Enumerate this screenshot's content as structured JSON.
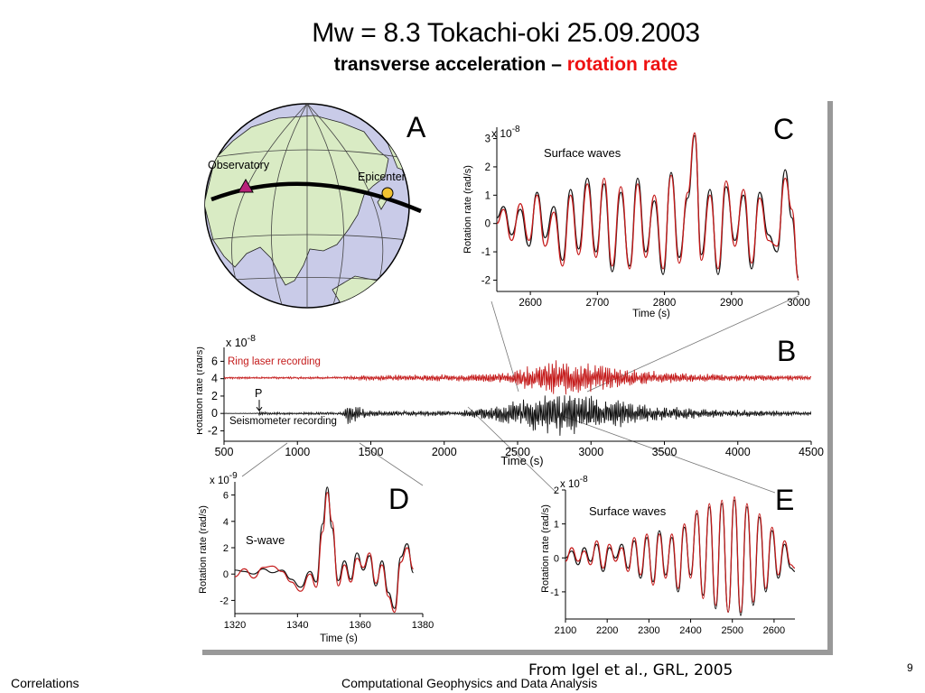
{
  "slide": {
    "title": "Mw = 8.3  Tokachi-oki 25.09.2003",
    "subtitle_part1": "transverse acceleration",
    "subtitle_dash": " – ",
    "subtitle_part2": "rotation rate",
    "citation": "From Igel et al., GRL, 2005",
    "footer_left": "Correlations",
    "footer_center": "Computational Geophysics and Data Analysis",
    "page_number": "9"
  },
  "colors": {
    "black_trace": "#111111",
    "red_trace": "#c41a1a",
    "globe_land": "#d9ebc4",
    "globe_ocean": "#c9cbe8",
    "observatory_marker": "#b8237a",
    "epicenter_marker": "#f2c230"
  },
  "panel_a": {
    "letter": "A",
    "observatory_label": "Observatory",
    "epicenter_label": "Epicenter",
    "observatory_icon": "triangle-marker",
    "epicenter_icon": "circle-marker"
  },
  "chart_data": [
    {
      "id": "B",
      "type": "line",
      "letter": "B",
      "ylabel": "Rotation rate (rad/s)",
      "yexp": "x 10",
      "yexp_power": "-8",
      "xlabel": "Time (s)",
      "xlim": [
        500,
        4500
      ],
      "ylim": [
        -3.2,
        7.6
      ],
      "xticks": [
        500,
        1000,
        1500,
        2000,
        2500,
        3000,
        3500,
        4000,
        4500
      ],
      "xtick_labels": [
        "500",
        "1000",
        "1500",
        "2000",
        "2500",
        "3000",
        "3500",
        "4000",
        "4500"
      ],
      "yticks": [
        -2,
        0,
        2,
        4,
        6
      ],
      "ytick_labels": [
        "-2",
        "0",
        "2",
        "4",
        "6"
      ],
      "annotations": [
        "Ring laser recording",
        "Seismometer recording",
        "P"
      ],
      "p_arrival_time": 740,
      "series": [
        {
          "name": "Ring laser recording",
          "color": "red",
          "offset": 4.1,
          "envelope": [
            [
              500,
              0.12
            ],
            [
              1300,
              0.15
            ],
            [
              1400,
              0.3
            ],
            [
              2200,
              0.45
            ],
            [
              2450,
              0.8
            ],
            [
              2600,
              1.5
            ],
            [
              2750,
              2.2
            ],
            [
              2900,
              2.0
            ],
            [
              3200,
              1.1
            ],
            [
              3700,
              0.5
            ],
            [
              4500,
              0.25
            ]
          ]
        },
        {
          "name": "Seismometer recording",
          "color": "black",
          "offset": 0.0,
          "envelope": [
            [
              500,
              0.02
            ],
            [
              730,
              0.04
            ],
            [
              745,
              0.5
            ],
            [
              760,
              0.15
            ],
            [
              1300,
              0.15
            ],
            [
              1350,
              1.4
            ],
            [
              1420,
              0.8
            ],
            [
              1500,
              0.35
            ],
            [
              2100,
              0.3
            ],
            [
              2400,
              1.2
            ],
            [
              2600,
              2.2
            ],
            [
              2800,
              2.9
            ],
            [
              3000,
              2.3
            ],
            [
              3400,
              1.0
            ],
            [
              3800,
              0.5
            ],
            [
              4500,
              0.25
            ]
          ]
        }
      ]
    },
    {
      "id": "C",
      "type": "line",
      "letter": "C",
      "annotation": "Surface waves",
      "ylabel": "Rotation rate (rad/s)",
      "yexp": "x 10",
      "yexp_power": "-8",
      "xlabel": "Time (s)",
      "xlim": [
        2550,
        3000
      ],
      "ylim": [
        -2.4,
        3.4
      ],
      "xticks": [
        2600,
        2700,
        2800,
        2900,
        3000
      ],
      "xtick_labels": [
        "2600",
        "2700",
        "2800",
        "2900",
        "3000"
      ],
      "yticks": [
        -2,
        -1,
        0,
        1,
        2,
        3
      ],
      "ytick_labels": [
        "-2",
        "-1",
        "0",
        "1",
        "2",
        "3"
      ],
      "series": [
        {
          "color": "black",
          "x": [
            2550,
            2560,
            2572,
            2585,
            2598,
            2610,
            2622,
            2635,
            2648,
            2660,
            2672,
            2685,
            2698,
            2710,
            2722,
            2735,
            2748,
            2760,
            2772,
            2785,
            2798,
            2810,
            2822,
            2835,
            2845,
            2855,
            2868,
            2880,
            2892,
            2905,
            2918,
            2930,
            2942,
            2955,
            2968,
            2980,
            2990,
            3000
          ],
          "y": [
            0.2,
            0.6,
            -0.4,
            0.5,
            -0.8,
            1.1,
            -0.5,
            0.6,
            -1.3,
            1.2,
            -0.9,
            1.6,
            -1.0,
            1.4,
            -1.7,
            1.1,
            -1.5,
            1.6,
            -1.0,
            0.8,
            -1.8,
            1.8,
            -1.2,
            0.9,
            3.1,
            -1.1,
            1.2,
            -1.8,
            1.3,
            -0.6,
            1.0,
            -1.6,
            1.1,
            -0.4,
            -1.0,
            1.9,
            0.2,
            -1.9
          ]
        },
        {
          "color": "red",
          "x": [
            2550,
            2560,
            2572,
            2585,
            2598,
            2610,
            2622,
            2635,
            2648,
            2660,
            2672,
            2685,
            2698,
            2710,
            2722,
            2735,
            2748,
            2760,
            2772,
            2785,
            2798,
            2810,
            2822,
            2835,
            2845,
            2855,
            2868,
            2880,
            2892,
            2905,
            2918,
            2930,
            2942,
            2955,
            2968,
            2980,
            2990,
            3000
          ],
          "y": [
            0.0,
            0.5,
            -0.6,
            0.7,
            -0.6,
            1.0,
            -0.8,
            0.4,
            -1.5,
            1.0,
            -1.1,
            1.4,
            -1.2,
            1.6,
            -1.5,
            1.3,
            -1.6,
            1.4,
            -1.2,
            1.0,
            -1.6,
            1.7,
            -1.4,
            1.1,
            3.2,
            -1.3,
            1.0,
            -1.6,
            1.5,
            -0.8,
            1.2,
            -1.4,
            0.9,
            -0.6,
            -0.8,
            1.6,
            0.5,
            -2.0
          ]
        }
      ]
    },
    {
      "id": "D",
      "type": "line",
      "letter": "D",
      "annotation": "S-wave",
      "ylabel": "Rotation rate (rad/s)",
      "yexp": "x 10",
      "yexp_power": "-9",
      "xlabel": "Time (s)",
      "xlim": [
        1320,
        1380
      ],
      "ylim": [
        -3,
        7
      ],
      "xticks": [
        1320,
        1340,
        1360,
        1380
      ],
      "xtick_labels": [
        "1320",
        "1340",
        "1360",
        "1380"
      ],
      "yticks": [
        -2,
        0,
        2,
        4,
        6
      ],
      "ytick_labels": [
        "-2",
        "0",
        "2",
        "4",
        "6"
      ],
      "series": [
        {
          "color": "black",
          "x": [
            1320,
            1323,
            1326,
            1329,
            1332,
            1335,
            1338,
            1341,
            1344,
            1346,
            1348,
            1349.5,
            1351,
            1353,
            1355,
            1357,
            1359,
            1361,
            1363,
            1365,
            1367,
            1369,
            1371,
            1373,
            1375,
            1377
          ],
          "y": [
            0.3,
            0.2,
            0.0,
            0.4,
            0.1,
            0.3,
            -0.4,
            -1.0,
            0.2,
            -0.6,
            3.8,
            6.6,
            3.5,
            -0.5,
            1.0,
            -0.4,
            1.6,
            0.3,
            1.4,
            -0.9,
            1.0,
            -1.4,
            -2.6,
            1.3,
            2.3,
            0.1
          ]
        },
        {
          "color": "red",
          "x": [
            1320,
            1323,
            1326,
            1329,
            1332,
            1335,
            1338,
            1341,
            1344,
            1346,
            1348,
            1349.5,
            1351,
            1353,
            1355,
            1357,
            1359,
            1361,
            1363,
            1365,
            1367,
            1369,
            1371,
            1373,
            1375,
            1377
          ],
          "y": [
            -0.2,
            0.4,
            -0.3,
            0.5,
            0.6,
            0.2,
            -0.6,
            -1.3,
            0.0,
            -1.0,
            3.2,
            6.2,
            4.0,
            -0.9,
            0.7,
            -0.6,
            1.2,
            0.5,
            1.6,
            -0.7,
            0.7,
            -1.7,
            -2.9,
            0.9,
            2.0,
            0.4
          ]
        }
      ]
    },
    {
      "id": "E",
      "type": "line",
      "letter": "E",
      "annotation": "Surface waves",
      "ylabel": "Rotation rate (rad/s)",
      "yexp": "x 10",
      "yexp_power": "-8",
      "xlabel": "",
      "xlim": [
        2100,
        2650
      ],
      "ylim": [
        -1.8,
        2.0
      ],
      "xticks": [
        2100,
        2200,
        2300,
        2400,
        2500,
        2600
      ],
      "xtick_labels": [
        "2100",
        "2200",
        "2300",
        "2400",
        "2500",
        "2600"
      ],
      "yticks": [
        -1,
        0,
        1,
        2
      ],
      "ytick_labels": [
        "-1",
        "0",
        "1",
        "2"
      ],
      "series": [
        {
          "color": "black",
          "x": [
            2100,
            2115,
            2130,
            2145,
            2160,
            2175,
            2190,
            2205,
            2220,
            2235,
            2250,
            2265,
            2280,
            2295,
            2310,
            2325,
            2340,
            2355,
            2370,
            2385,
            2400,
            2415,
            2430,
            2445,
            2460,
            2475,
            2490,
            2505,
            2520,
            2535,
            2550,
            2565,
            2580,
            2595,
            2610,
            2625,
            2640,
            2650
          ],
          "y": [
            0.0,
            0.2,
            -0.2,
            0.3,
            -0.1,
            0.4,
            -0.4,
            0.3,
            0.0,
            0.4,
            -0.3,
            0.5,
            -0.6,
            0.6,
            -0.7,
            0.8,
            -0.5,
            0.6,
            -1.0,
            0.9,
            -0.5,
            1.3,
            -1.1,
            1.5,
            -1.5,
            1.6,
            -1.6,
            1.7,
            -1.7,
            1.5,
            -1.4,
            1.2,
            -1.0,
            0.8,
            -0.6,
            0.4,
            -0.3,
            -0.4
          ]
        },
        {
          "color": "red",
          "x": [
            2100,
            2115,
            2130,
            2145,
            2160,
            2175,
            2190,
            2205,
            2220,
            2235,
            2250,
            2265,
            2280,
            2295,
            2310,
            2325,
            2340,
            2355,
            2370,
            2385,
            2400,
            2415,
            2430,
            2445,
            2460,
            2475,
            2490,
            2505,
            2520,
            2535,
            2550,
            2565,
            2580,
            2595,
            2610,
            2625,
            2640,
            2650
          ],
          "y": [
            -0.1,
            0.3,
            -0.1,
            0.2,
            -0.2,
            0.5,
            -0.3,
            0.4,
            -0.1,
            0.3,
            -0.4,
            0.6,
            -0.5,
            0.7,
            -0.8,
            0.7,
            -0.6,
            0.7,
            -0.9,
            1.0,
            -0.6,
            1.4,
            -1.2,
            1.6,
            -1.4,
            1.7,
            -1.6,
            1.8,
            -1.6,
            1.6,
            -1.3,
            1.3,
            -0.9,
            0.9,
            -0.5,
            0.5,
            -0.2,
            -0.3
          ]
        }
      ]
    }
  ]
}
